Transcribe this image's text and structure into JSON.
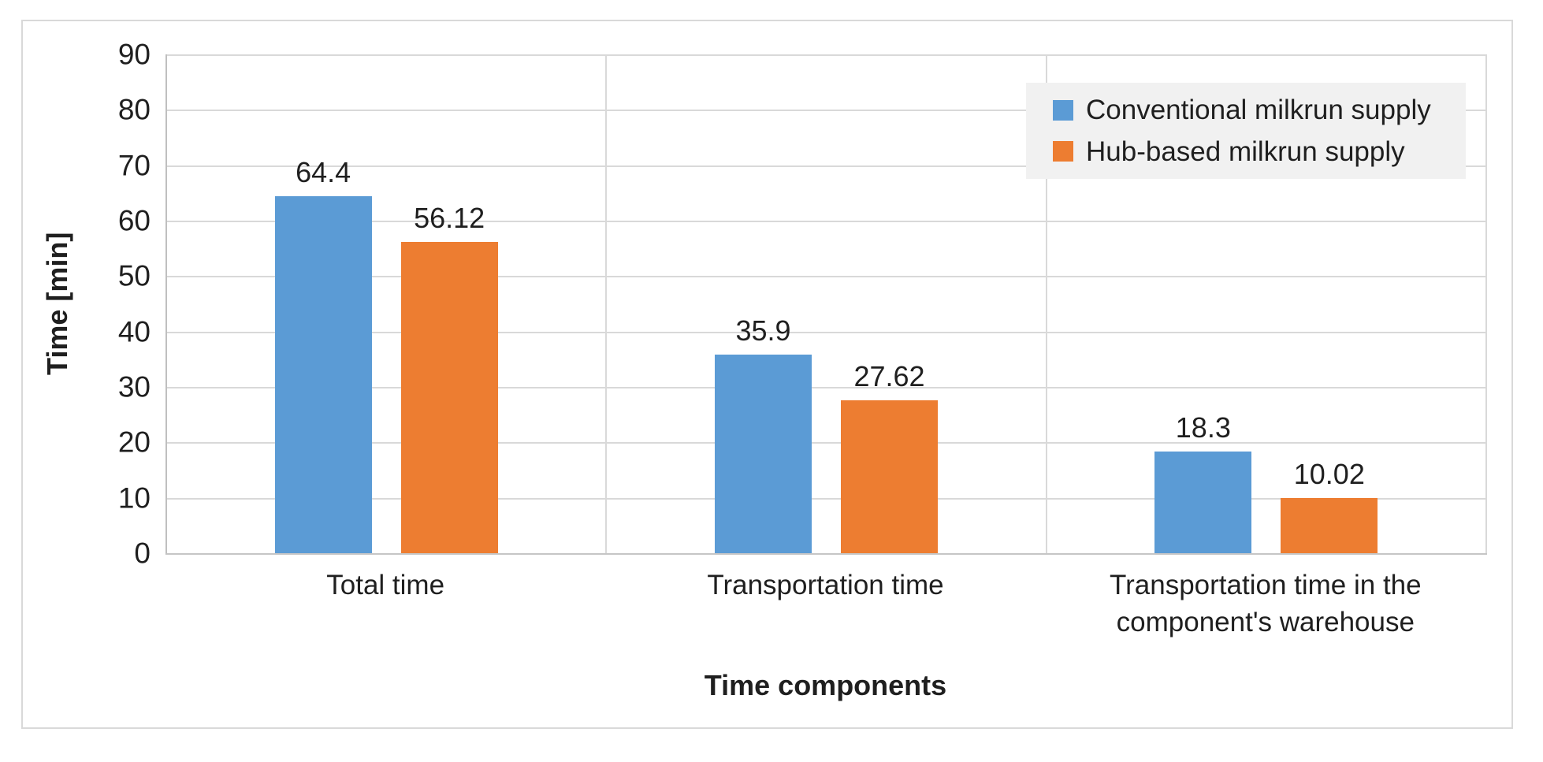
{
  "chart_data": {
    "type": "bar",
    "title": "",
    "categories": [
      "Total time",
      "Transportation time",
      "Transportation time in the component's warehouse"
    ],
    "series": [
      {
        "name": "Conventional milkrun supply",
        "color": "#5B9BD5",
        "values": [
          64.4,
          35.9,
          18.3
        ]
      },
      {
        "name": "Hub-based milkrun supply",
        "color": "#ED7D31",
        "values": [
          56.12,
          27.62,
          10.02
        ]
      }
    ],
    "xlabel": "Time components",
    "ylabel": "Time [min]",
    "ylim": [
      0,
      90
    ],
    "yticks": [
      0,
      10,
      20,
      30,
      40,
      50,
      60,
      70,
      80,
      90
    ],
    "grid": true,
    "legend_position": "top-right",
    "data_labels_shown": true
  },
  "colors": {
    "series_blue": "#5B9BD5",
    "series_orange": "#ED7D31",
    "gridline": "#D9D9D9",
    "axis_line": "#BFBFBF",
    "legend_background": "#F1F1F1",
    "frame_border": "#D9D9D9",
    "text": "#1F1F1F"
  }
}
